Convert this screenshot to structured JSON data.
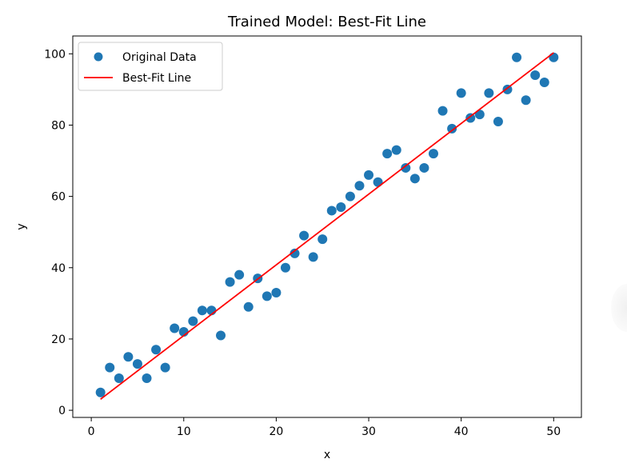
{
  "chart_data": {
    "type": "scatter",
    "title": "Trained Model: Best-Fit Line",
    "xlabel": "x",
    "ylabel": "y",
    "xlim": [
      -2,
      53
    ],
    "ylim": [
      -2,
      105
    ],
    "xticks": [
      0,
      10,
      20,
      30,
      40,
      50
    ],
    "yticks": [
      0,
      20,
      40,
      60,
      80,
      100
    ],
    "legend_position": "upper-left",
    "grid": false,
    "series": [
      {
        "name": "Original Data",
        "kind": "scatter",
        "color": "#1f77b4",
        "x": [
          1,
          2,
          3,
          4,
          5,
          6,
          7,
          8,
          9,
          10,
          11,
          12,
          13,
          14,
          15,
          16,
          17,
          18,
          19,
          20,
          21,
          22,
          23,
          24,
          25,
          26,
          27,
          28,
          29,
          30,
          31,
          32,
          33,
          34,
          35,
          36,
          37,
          38,
          39,
          40,
          41,
          42,
          43,
          44,
          45,
          46,
          47,
          48,
          49,
          50
        ],
        "y": [
          5,
          12,
          9,
          15,
          13,
          9,
          17,
          12,
          23,
          22,
          25,
          28,
          28,
          21,
          36,
          38,
          29,
          37,
          32,
          33,
          40,
          44,
          49,
          43,
          48,
          56,
          57,
          60,
          63,
          66,
          64,
          72,
          73,
          68,
          65,
          68,
          72,
          84,
          79,
          89,
          82,
          83,
          89,
          81,
          90,
          99,
          87,
          94,
          92,
          99
        ]
      },
      {
        "name": "Best-Fit Line",
        "kind": "line",
        "color": "#ff0000",
        "x": [
          1,
          50
        ],
        "y": [
          3.1,
          100.3
        ]
      }
    ]
  }
}
